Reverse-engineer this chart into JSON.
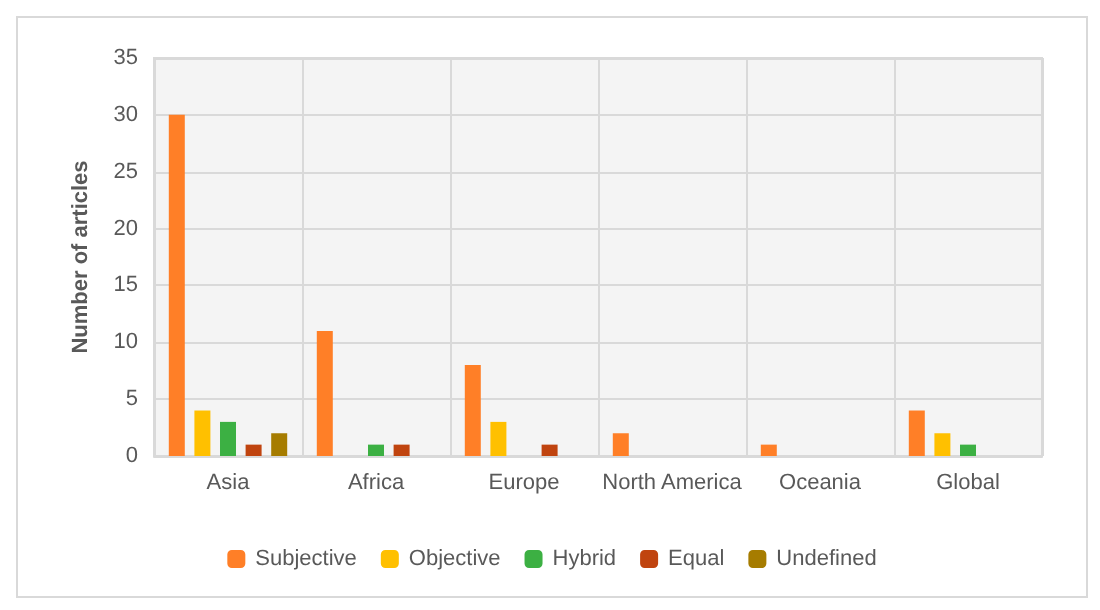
{
  "chart_data": {
    "type": "bar",
    "ylabel": "Number of articles",
    "categories": [
      "Asia",
      "Africa",
      "Europe",
      "North America",
      "Oceania",
      "Global"
    ],
    "series": [
      {
        "name": "Subjective",
        "color": "#ff7f27",
        "values": [
          30,
          11,
          8,
          2,
          1,
          4
        ]
      },
      {
        "name": "Objective",
        "color": "#ffc000",
        "values": [
          4,
          0,
          3,
          0,
          0,
          2
        ]
      },
      {
        "name": "Hybrid",
        "color": "#3cb043",
        "values": [
          3,
          1,
          0,
          0,
          0,
          1
        ]
      },
      {
        "name": "Equal",
        "color": "#c0440f",
        "values": [
          1,
          1,
          1,
          0,
          0,
          0
        ]
      },
      {
        "name": "Undefined",
        "color": "#a67c00",
        "values": [
          2,
          0,
          0,
          0,
          0,
          0
        ]
      }
    ],
    "ylim": [
      0,
      35
    ],
    "yticks": [
      0,
      5,
      10,
      15,
      20,
      25,
      30,
      35
    ],
    "grid": true,
    "legend": "bottom"
  }
}
